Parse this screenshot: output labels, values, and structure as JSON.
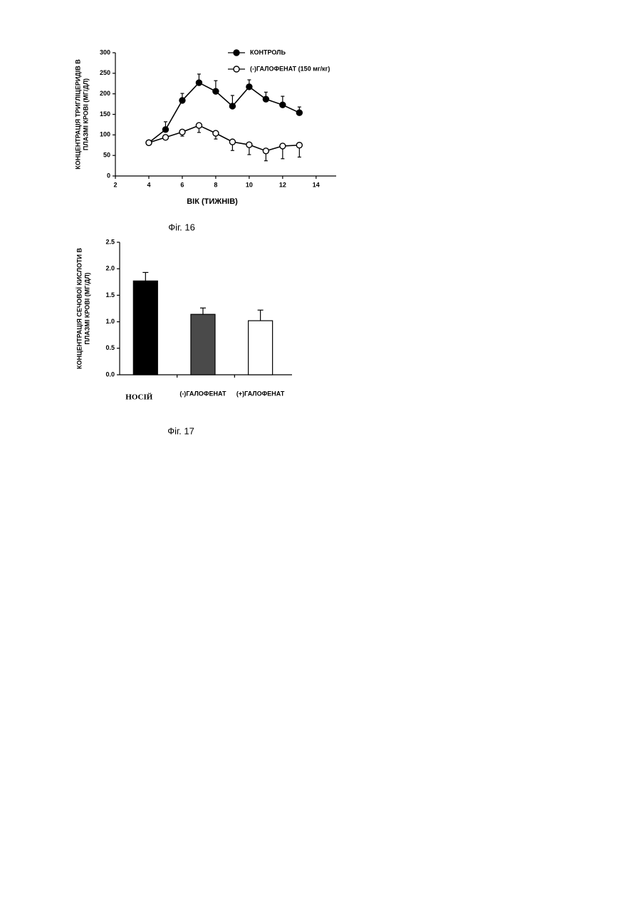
{
  "chart_data": [
    {
      "type": "line",
      "caption": "Фіг. 16",
      "xlabel": "ВІК (ТИЖНІВ)",
      "ylabel": [
        "КОНЦЕНТРАЦІЯ ТРИГЛІЦЕРИДІВ В",
        "ПЛАЗМІ КРОВІ (МГ/ДЛ)"
      ],
      "x": [
        4,
        5,
        6,
        7,
        8,
        9,
        10,
        11,
        12,
        13
      ],
      "series": [
        {
          "name": "КОНТРОЛЬ",
          "color": "#000000",
          "marker_fill": "#000000",
          "error_bar": "up",
          "values": [
            81,
            113,
            184,
            227,
            206,
            170,
            217,
            187,
            173,
            154
          ],
          "errors": [
            null,
            19,
            17,
            21,
            26,
            26,
            17,
            17,
            21,
            14
          ]
        },
        {
          "name": "(-)ГАЛОФЕНАТ (150 мг/кг)",
          "color": "#000000",
          "marker_fill": "#ffffff",
          "error_bar": "down",
          "values": [
            81,
            94,
            107,
            123,
            104,
            83,
            76,
            61,
            73,
            75
          ],
          "errors": [
            null,
            null,
            10,
            17,
            14,
            21,
            24,
            24,
            31,
            29
          ]
        }
      ],
      "xlim": [
        2,
        15.2
      ],
      "xticks": [
        2,
        4,
        6,
        8,
        10,
        12,
        14
      ],
      "ylim": [
        0,
        300
      ],
      "yticks": [
        0,
        50,
        100,
        150,
        200,
        250,
        300
      ],
      "legend": "top-right"
    },
    {
      "type": "bar",
      "caption": "Фіг. 17",
      "ylabel": [
        "КОНЦЕНТРАЦІЯ СЕЧОВОЇ КИСЛОТИ В",
        "ПЛАЗМІ КРОВІ (МГ/ДЛ)"
      ],
      "categories": [
        "НОСІЙ",
        "(-)ГАЛОФЕНАТ",
        "(+)ГАЛОФЕНАТ"
      ],
      "values": [
        1.77,
        1.14,
        1.02
      ],
      "errors": [
        0.16,
        0.12,
        0.2
      ],
      "colors": [
        "#000000",
        "#4a4a4a",
        "#ffffff"
      ],
      "ylim": [
        0,
        2.5
      ],
      "yticks": [
        {
          "value": 0,
          "label": "0.0"
        },
        0.5,
        {
          "value": 1,
          "label": "1.0"
        },
        1.5,
        {
          "value": 2,
          "label": "2.0"
        },
        2.5
      ]
    }
  ]
}
